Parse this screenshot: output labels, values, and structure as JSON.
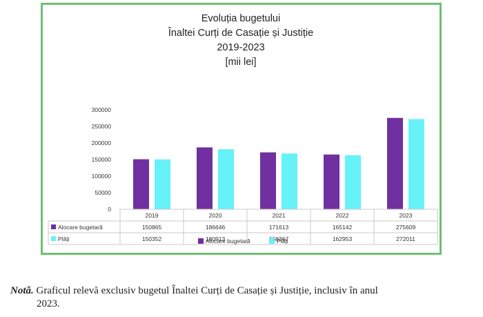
{
  "chart_data": {
    "type": "bar",
    "title": [
      "Evoluția bugetului",
      "Înaltei Curți de Casație și Justiție",
      "2019-2023",
      "[mii lei]"
    ],
    "categories": [
      "2019",
      "2020",
      "2021",
      "2022",
      "2023"
    ],
    "series": [
      {
        "name": "Alocare bugetară",
        "values": [
          150865,
          186646,
          171613,
          165142,
          275609
        ],
        "color": "#7030a0"
      },
      {
        "name": "Plăți",
        "values": [
          150352,
          180913,
          168367,
          162953,
          272011
        ],
        "color": "#66f2f8"
      }
    ],
    "ylim": [
      0,
      300000
    ],
    "yticks": [
      "300000",
      "250000",
      "200000",
      "150000",
      "100000",
      "50000",
      "0"
    ],
    "data_table": true,
    "legend_position": "bottom",
    "grid": false
  },
  "note": {
    "label": "Notă.",
    "text_line1": "Graficul relevă exclusiv bugetul Înaltei Curți de Casație și Justiție, inclusiv în anul",
    "text_line2": "2023."
  }
}
